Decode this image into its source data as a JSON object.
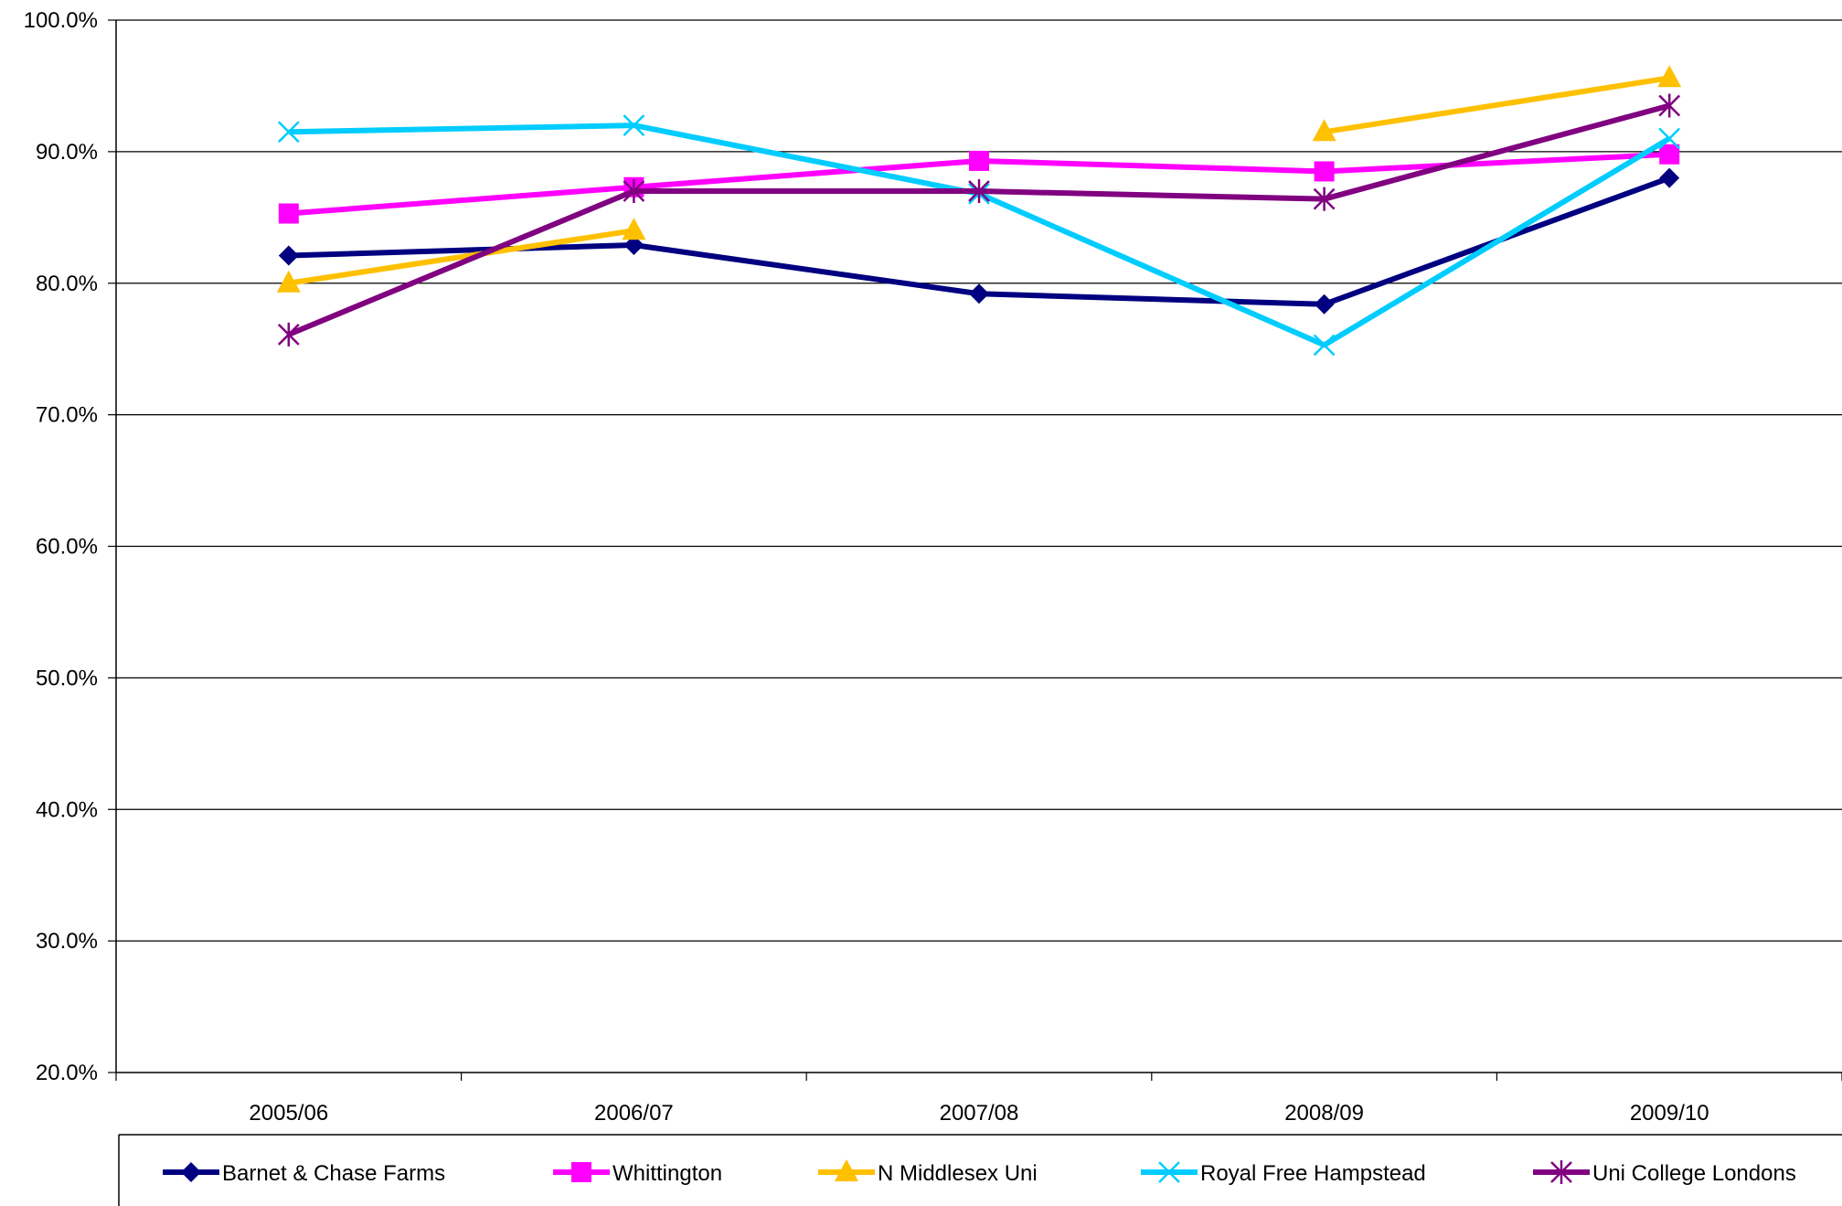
{
  "chart_data": {
    "type": "line",
    "title": "",
    "xlabel": "",
    "ylabel": "",
    "categories": [
      "2005/06",
      "2006/07",
      "2007/08",
      "2008/09",
      "2009/10"
    ],
    "ylim": [
      20,
      100
    ],
    "yticks": [
      "20.0%",
      "30.0%",
      "40.0%",
      "50.0%",
      "60.0%",
      "70.0%",
      "80.0%",
      "90.0%",
      "100.0%"
    ],
    "ytick_values": [
      20,
      30,
      40,
      50,
      60,
      70,
      80,
      90,
      100
    ],
    "grid": "horizontal",
    "legend_position": "bottom",
    "series": [
      {
        "name": "Barnet & Chase Farms",
        "color": "#000080",
        "marker": "diamond",
        "values": [
          82.1,
          82.9,
          79.2,
          78.4,
          88.0
        ]
      },
      {
        "name": "Whittington",
        "color": "#FF00FF",
        "marker": "square",
        "values": [
          85.3,
          87.3,
          89.3,
          88.5,
          89.8
        ]
      },
      {
        "name": "N Middlesex Uni",
        "color": "#FFC000",
        "marker": "triangle",
        "values": [
          80.0,
          84.0,
          null,
          91.5,
          95.6
        ]
      },
      {
        "name": "Royal Free Hampstead",
        "color": "#00CCFF",
        "marker": "x",
        "values": [
          91.5,
          92.0,
          86.8,
          75.3,
          91.0
        ]
      },
      {
        "name": "Uni College Londons",
        "color": "#800080",
        "marker": "star",
        "values": [
          76.1,
          87.0,
          87.0,
          86.4,
          93.5
        ]
      }
    ]
  }
}
